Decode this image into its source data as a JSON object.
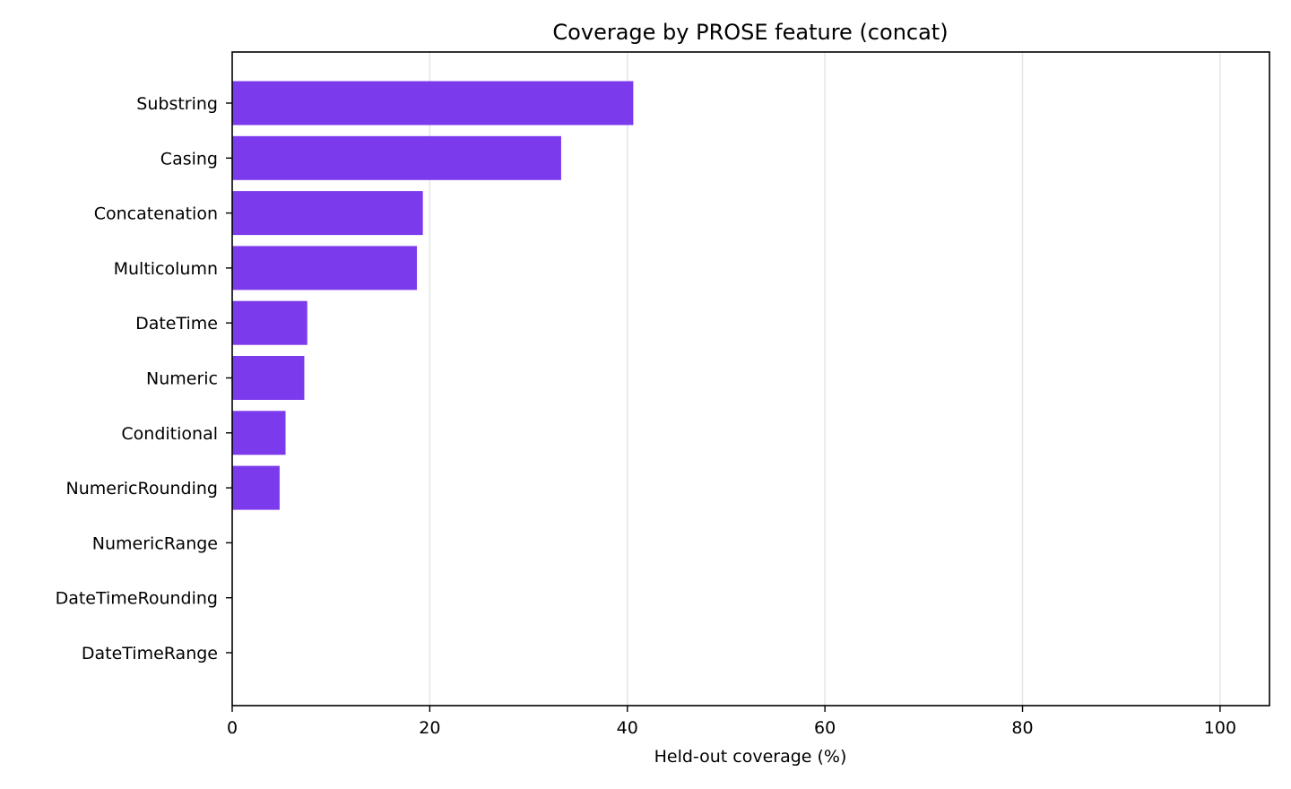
{
  "chart_data": {
    "type": "bar",
    "orientation": "horizontal",
    "title": "Coverage by PROSE feature (concat)",
    "xlabel": "Held-out coverage (%)",
    "ylabel": "",
    "categories": [
      "Substring",
      "Casing",
      "Concatenation",
      "Multicolumn",
      "DateTime",
      "Numeric",
      "Conditional",
      "NumericRounding",
      "NumericRange",
      "DateTimeRounding",
      "DateTimeRange"
    ],
    "values": [
      40.6,
      33.3,
      19.3,
      18.7,
      7.6,
      7.3,
      5.4,
      4.8,
      0,
      0,
      0
    ],
    "xlim": [
      0,
      105
    ],
    "xticks": [
      0,
      20,
      40,
      60,
      80,
      100
    ],
    "grid": "vertical",
    "bar_color": "#7c3aed"
  }
}
